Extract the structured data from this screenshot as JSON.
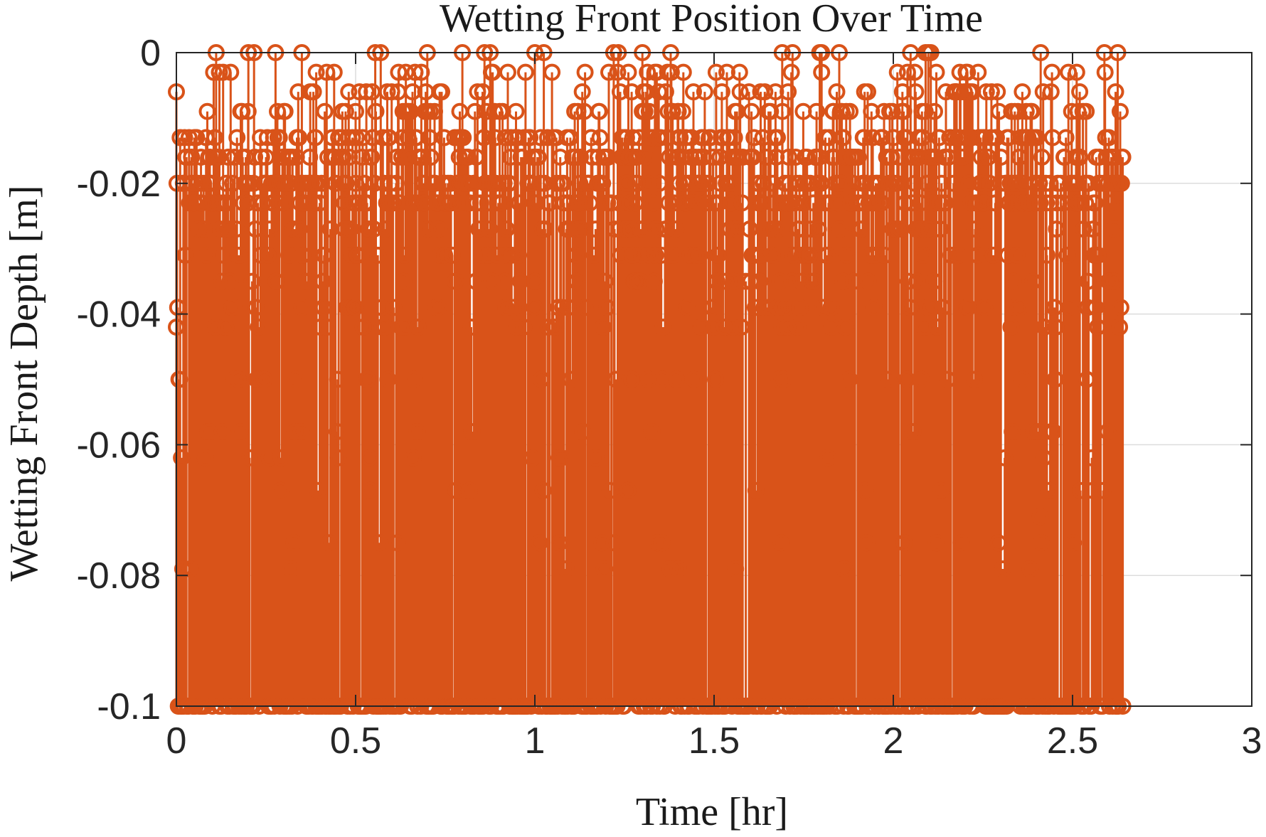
{
  "chart_data": {
    "type": "stem",
    "title": "Wetting Front Position Over Time",
    "xlabel": "Time [hr]",
    "ylabel": "Wetting Front Depth [m]",
    "xlim": [
      0,
      3
    ],
    "ylim": [
      -0.1,
      0
    ],
    "xticks": [
      0,
      0.5,
      1,
      1.5,
      2,
      2.5,
      3
    ],
    "xtick_labels": [
      "0",
      "0.5",
      "1",
      "1.5",
      "2",
      "2.5",
      "3"
    ],
    "yticks": [
      0,
      -0.02,
      -0.04,
      -0.06,
      -0.08,
      -0.1
    ],
    "ytick_labels": [
      "0",
      "-0.02",
      "-0.04",
      "-0.06",
      "-0.08",
      "-0.1"
    ],
    "grid": true,
    "baseline": -0.1,
    "marker": "circle",
    "color": "#D95319",
    "x_range_of_data": [
      0,
      2.64
    ],
    "approx_sample_count": 1500,
    "series": [
      {
        "values_sample": [
          {
            "x": 0.0,
            "y": -0.006
          },
          {
            "x": 0.02,
            "y": -0.02
          },
          {
            "x": 0.05,
            "y": -0.013
          },
          {
            "x": 0.09,
            "y": -0.016
          },
          {
            "x": 0.12,
            "y": -0.003
          },
          {
            "x": 0.16,
            "y": -0.039
          },
          {
            "x": 0.2,
            "y": -0.009
          },
          {
            "x": 0.27,
            "y": -0.02
          },
          {
            "x": 0.3,
            "y": -0.009
          },
          {
            "x": 0.35,
            "y": 0.0
          },
          {
            "x": 0.39,
            "y": -0.003
          },
          {
            "x": 0.44,
            "y": -0.003
          },
          {
            "x": 0.45,
            "y": -0.05
          },
          {
            "x": 0.5,
            "y": -0.009
          },
          {
            "x": 0.53,
            "y": -0.006
          },
          {
            "x": 0.57,
            "y": 0.0
          },
          {
            "x": 0.64,
            "y": -0.003
          },
          {
            "x": 0.7,
            "y": 0.0
          },
          {
            "x": 0.74,
            "y": -0.006
          },
          {
            "x": 0.8,
            "y": -0.013
          },
          {
            "x": 0.91,
            "y": -0.009
          },
          {
            "x": 0.97,
            "y": -0.013
          },
          {
            "x": 1.0,
            "y": 0.0
          },
          {
            "x": 1.06,
            "y": -0.013
          },
          {
            "x": 1.14,
            "y": -0.003
          },
          {
            "x": 1.17,
            "y": -0.062
          },
          {
            "x": 1.22,
            "y": 0.0
          },
          {
            "x": 1.27,
            "y": -0.006
          },
          {
            "x": 1.3,
            "y": 0.0
          },
          {
            "x": 1.34,
            "y": -0.003
          },
          {
            "x": 1.4,
            "y": -0.009
          },
          {
            "x": 1.49,
            "y": -0.013
          },
          {
            "x": 1.56,
            "y": -0.079
          },
          {
            "x": 1.63,
            "y": -0.006
          },
          {
            "x": 1.69,
            "y": 0.0
          },
          {
            "x": 1.8,
            "y": 0.0
          },
          {
            "x": 1.86,
            "y": -0.013
          },
          {
            "x": 1.92,
            "y": -0.006
          },
          {
            "x": 2.03,
            "y": -0.075
          },
          {
            "x": 2.06,
            "y": -0.003
          },
          {
            "x": 2.09,
            "y": 0.0
          },
          {
            "x": 2.12,
            "y": -0.003
          },
          {
            "x": 2.17,
            "y": -0.006
          },
          {
            "x": 2.29,
            "y": -0.006
          },
          {
            "x": 2.36,
            "y": -0.006
          },
          {
            "x": 2.41,
            "y": -0.071
          },
          {
            "x": 2.44,
            "y": -0.006
          },
          {
            "x": 2.52,
            "y": -0.006
          },
          {
            "x": 2.6,
            "y": -0.035
          },
          {
            "x": 2.62,
            "y": -0.006
          },
          {
            "x": 2.64,
            "y": -0.1
          }
        ]
      }
    ]
  }
}
